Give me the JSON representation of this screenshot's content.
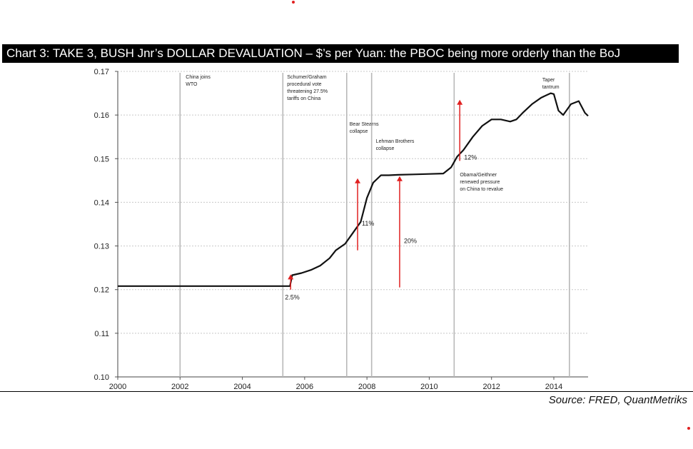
{
  "header": {
    "title": "Chart 3: TAKE 3, BUSH Jnr’s DOLLAR DEVALUATION – $’s per Yuan: the PBOC being more orderly than the BoJ"
  },
  "footer": {
    "source": "Source: FRED, QuantMetriks"
  },
  "chart_data": {
    "type": "line",
    "title": "",
    "xlabel": "",
    "ylabel": "",
    "xlim": [
      2000,
      2015.1
    ],
    "ylim": [
      0.1,
      0.17
    ],
    "x_ticks": [
      "2000",
      "2002",
      "2004",
      "2006",
      "2008",
      "2010",
      "2012",
      "2014"
    ],
    "x_tick_values": [
      2000,
      2002,
      2004,
      2006,
      2008,
      2010,
      2012,
      2014
    ],
    "y_ticks": [
      "0.10",
      "0.11",
      "0.12",
      "0.13",
      "0.14",
      "0.15",
      "0.16",
      "0.17"
    ],
    "y_tick_values": [
      0.1,
      0.11,
      0.12,
      0.13,
      0.14,
      0.15,
      0.16,
      0.17
    ],
    "grid": true,
    "line_color": "#111111",
    "arrow_color": "#e02020",
    "series": [
      {
        "x": [
          2000.0,
          2001.0,
          2002.0,
          2003.0,
          2004.0,
          2005.0,
          2005.53,
          2005.6,
          2005.9,
          2006.2,
          2006.5,
          2006.8,
          2007.0,
          2007.3,
          2007.5,
          2007.8,
          2008.0,
          2008.2,
          2008.45,
          2008.7,
          2009.0,
          2009.5,
          2010.0,
          2010.45,
          2010.7,
          2010.9,
          2011.1,
          2011.4,
          2011.7,
          2012.0,
          2012.3,
          2012.6,
          2012.8,
          2013.0,
          2013.3,
          2013.6,
          2013.9,
          2014.0,
          2014.15,
          2014.3,
          2014.55,
          2014.8,
          2015.0,
          2015.1
        ],
        "y": [
          0.1208,
          0.1208,
          0.1208,
          0.1208,
          0.1208,
          0.1208,
          0.1208,
          0.1233,
          0.1238,
          0.1245,
          0.1255,
          0.1272,
          0.129,
          0.1305,
          0.1325,
          0.1355,
          0.141,
          0.1445,
          0.1462,
          0.1462,
          0.1463,
          0.1464,
          0.1465,
          0.1466,
          0.148,
          0.1505,
          0.152,
          0.155,
          0.1575,
          0.159,
          0.159,
          0.1585,
          0.159,
          0.1605,
          0.1625,
          0.164,
          0.165,
          0.1648,
          0.161,
          0.16,
          0.1625,
          0.1632,
          0.1605,
          0.1598
        ]
      }
    ],
    "event_lines": [
      {
        "x": 2002.0,
        "label": [
          "China joins",
          "WTO"
        ]
      },
      {
        "x": 2005.3,
        "label": [
          "Schumer/Graham",
          "procedural vote",
          "threatening 27.5%",
          "tariffs on China"
        ]
      },
      {
        "x": 2007.35,
        "label": [
          "Bear Stearns",
          "collapse"
        ]
      },
      {
        "x": 2008.15,
        "label": [
          "Lehman Brothers",
          "collapse"
        ]
      },
      {
        "x": 2010.8,
        "label": [
          "Obama/Geithner",
          "renewed pressure",
          "on China to revalue"
        ]
      },
      {
        "x": 2014.5,
        "label": [
          "Taper",
          "tantrum"
        ]
      }
    ],
    "arrows": [
      {
        "x": 2005.55,
        "y_from": 0.12,
        "y_to": 0.1235,
        "label": "2.5%"
      },
      {
        "x": 2007.7,
        "y_from": 0.129,
        "y_to": 0.1455,
        "label": "11%"
      },
      {
        "x": 2009.05,
        "y_from": 0.1205,
        "y_to": 0.146,
        "label": "20%"
      },
      {
        "x": 2010.98,
        "y_from": 0.1495,
        "y_to": 0.1635,
        "label": "12%"
      }
    ]
  }
}
